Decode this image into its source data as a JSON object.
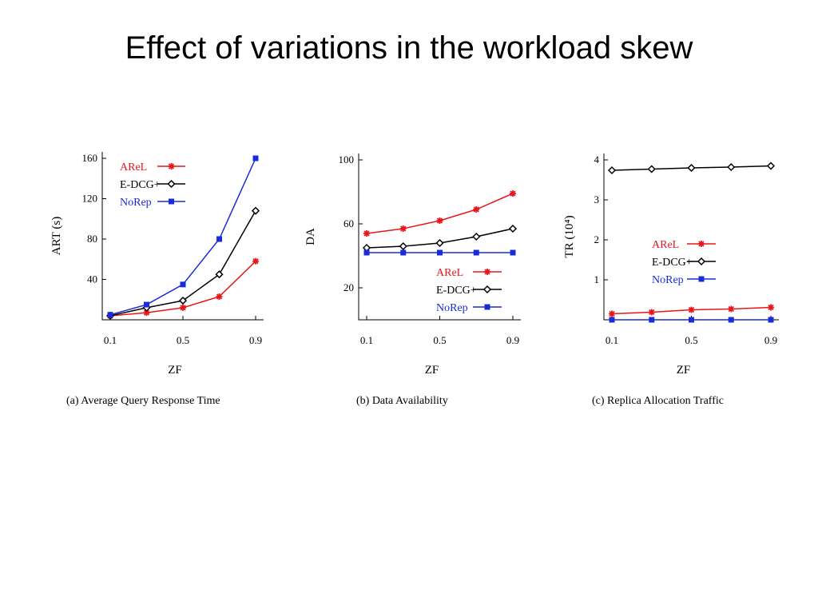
{
  "slide": {
    "title": "Effect of variations in the workload skew"
  },
  "colors": {
    "AReL": "#e8161b",
    "E-DCG+": "#000000",
    "NoRep": "#1a2bd9"
  },
  "chart_data": [
    {
      "type": "line",
      "caption": "(a)  Average Query Response Time",
      "xlabel": "ZF",
      "ylabel": "ART (s)",
      "x": [
        0.1,
        0.3,
        0.5,
        0.7,
        0.9
      ],
      "xticks": [
        "0.1",
        "0.5",
        "0.9"
      ],
      "xlim": [
        0.1,
        0.9
      ],
      "yticks": [
        40,
        80,
        120,
        160
      ],
      "ylim": [
        0,
        160
      ],
      "legend": "top-left",
      "series": [
        {
          "name": "AReL",
          "marker": "asterisk",
          "values": [
            4,
            7,
            12,
            23,
            58
          ]
        },
        {
          "name": "E-DCG+",
          "marker": "diamond",
          "values": [
            4,
            12,
            19,
            45,
            108
          ]
        },
        {
          "name": "NoRep",
          "marker": "square",
          "values": [
            5,
            15,
            35,
            80,
            160
          ]
        }
      ]
    },
    {
      "type": "line",
      "caption": "(b)  Data Availability",
      "xlabel": "ZF",
      "ylabel": "DA",
      "x": [
        0.1,
        0.3,
        0.5,
        0.7,
        0.9
      ],
      "xticks": [
        "0.1",
        "0.5",
        "0.9"
      ],
      "xlim": [
        0.1,
        0.9
      ],
      "yticks": [
        20,
        60,
        100
      ],
      "ylim": [
        0,
        100
      ],
      "legend": "bottom-right",
      "series": [
        {
          "name": "AReL",
          "marker": "asterisk",
          "values": [
            54,
            57,
            62,
            69,
            79
          ]
        },
        {
          "name": "E-DCG+",
          "marker": "diamond",
          "values": [
            45,
            46,
            48,
            52,
            57
          ]
        },
        {
          "name": "NoRep",
          "marker": "square",
          "values": [
            42,
            42,
            42,
            42,
            42
          ]
        }
      ]
    },
    {
      "type": "line",
      "caption": "(c)  Replica Allocation Traffic",
      "xlabel": "ZF",
      "ylabel": "TR (10⁴)",
      "x": [
        0.1,
        0.3,
        0.5,
        0.7,
        0.9
      ],
      "xticks": [
        "0.1",
        "0.5",
        "0.9"
      ],
      "xlim": [
        0.1,
        0.9
      ],
      "yticks": [
        1,
        2,
        3,
        4
      ],
      "ylim": [
        0,
        4
      ],
      "legend": "middle-right",
      "series": [
        {
          "name": "AReL",
          "marker": "asterisk",
          "values": [
            0.15,
            0.19,
            0.25,
            0.27,
            0.31
          ]
        },
        {
          "name": "E-DCG+",
          "marker": "diamond",
          "values": [
            3.74,
            3.77,
            3.8,
            3.82,
            3.85
          ]
        },
        {
          "name": "NoRep",
          "marker": "square",
          "values": [
            0.0,
            0.0,
            0.0,
            0.0,
            0.0
          ]
        }
      ]
    }
  ]
}
